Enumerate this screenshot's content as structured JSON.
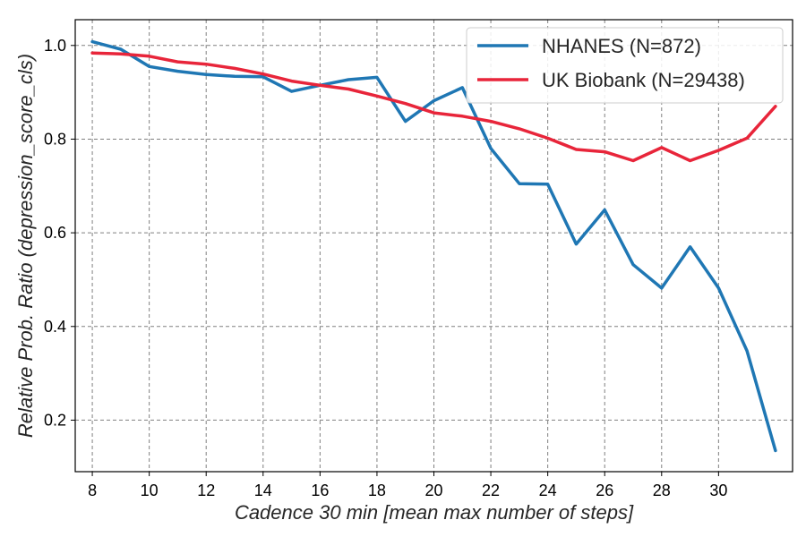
{
  "chart_data": {
    "type": "line",
    "title": "",
    "xlabel": "Cadence 30 min [mean max number of steps]",
    "ylabel": "Relative Prob. Ratio (depression_score_cls)",
    "xlim": [
      7.4,
      32.6
    ],
    "ylim": [
      0.09,
      1.055
    ],
    "xticks": [
      8,
      10,
      12,
      14,
      16,
      18,
      20,
      22,
      24,
      26,
      28,
      30
    ],
    "yticks": [
      0.2,
      0.4,
      0.6,
      0.8,
      1.0
    ],
    "ytick_labels": [
      "0.2",
      "0.4",
      "0.6",
      "0.8",
      "1.0"
    ],
    "grid": true,
    "legend_position": "top-right",
    "series": [
      {
        "name": "NHANES (N=872)",
        "color": "#1f77b4",
        "x": [
          8,
          9,
          10,
          11,
          12,
          13,
          14,
          15,
          16,
          17,
          18,
          19,
          20,
          21,
          22,
          23,
          24,
          25,
          26,
          27,
          28,
          29,
          30,
          31,
          32
        ],
        "y": [
          1.008,
          0.992,
          0.955,
          0.945,
          0.938,
          0.934,
          0.933,
          0.902,
          0.915,
          0.927,
          0.932,
          0.838,
          0.882,
          0.91,
          0.78,
          0.705,
          0.704,
          0.576,
          0.649,
          0.532,
          0.482,
          0.57,
          0.482,
          0.348,
          0.135
        ]
      },
      {
        "name": "UK Biobank (N=29438)",
        "color": "#e8253a",
        "x": [
          8,
          9,
          10,
          11,
          12,
          13,
          14,
          15,
          16,
          17,
          18,
          19,
          20,
          21,
          22,
          23,
          24,
          25,
          26,
          27,
          28,
          29,
          30,
          31,
          32
        ],
        "y": [
          0.984,
          0.982,
          0.977,
          0.965,
          0.96,
          0.951,
          0.939,
          0.924,
          0.915,
          0.907,
          0.892,
          0.876,
          0.856,
          0.849,
          0.838,
          0.822,
          0.802,
          0.778,
          0.773,
          0.754,
          0.782,
          0.754,
          0.776,
          0.802,
          0.87
        ]
      }
    ]
  }
}
